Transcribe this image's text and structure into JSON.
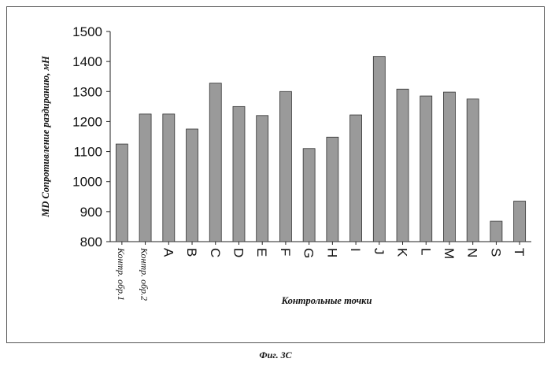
{
  "chart_data": {
    "type": "bar",
    "ylabel": "MD Сопротивление раздиранию, мН",
    "xlabel": "Контрольные точки",
    "categories": [
      "Контр. обр.1",
      "Контр. обр.2",
      "A",
      "B",
      "C",
      "D",
      "E",
      "F",
      "G",
      "H",
      "I",
      "J",
      "K",
      "L",
      "M",
      "N",
      "S",
      "T"
    ],
    "values": [
      1125,
      1225,
      1225,
      1175,
      1328,
      1250,
      1220,
      1300,
      1110,
      1148,
      1222,
      1417,
      1308,
      1285,
      1298,
      1275,
      868,
      935
    ],
    "ylim": [
      800,
      1500
    ],
    "yticks": [
      800,
      900,
      1000,
      1100,
      1200,
      1300,
      1400,
      1500
    ],
    "grid": false,
    "legend": "none",
    "bar_color": "#9a9a9a"
  },
  "caption": "Фиг. 3С"
}
